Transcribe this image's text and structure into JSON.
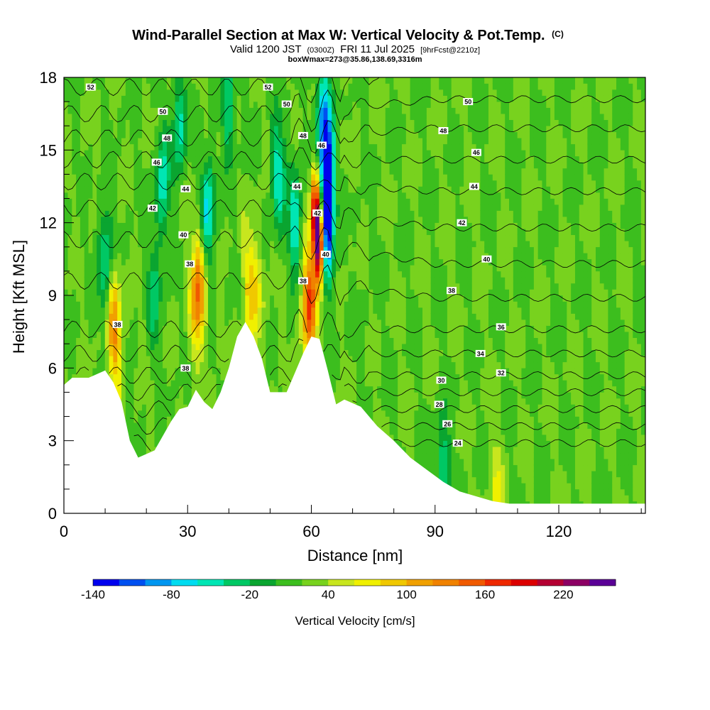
{
  "chart_data": {
    "type": "heatmap",
    "title": "Wind-Parallel Section at Max W: Vertical Velocity & Pot.Temp.",
    "title_mark": "(C)",
    "subtitle_main": "Valid 1200 JST",
    "subtitle_z": "(0300Z)",
    "subtitle_date": "FRI 11 Jul 2025",
    "subtitle_fcst": "[9hrFcst@2210z]",
    "subtitle2": "boxWmax=273@35.86,138.69,3316m",
    "xlabel": "Distance [nm]",
    "ylabel": "Height [Kft MSL]",
    "xlim": [
      0,
      141
    ],
    "ylim": [
      0,
      18
    ],
    "x_ticks": [
      0,
      30,
      60,
      90,
      120
    ],
    "y_ticks": [
      0,
      3,
      6,
      9,
      12,
      15,
      18
    ],
    "colorbar": {
      "label": "Vertical Velocity [cm/s]",
      "min": -140,
      "max": 260,
      "step": 20,
      "tick_labels": [
        "-140",
        "-80",
        "-20",
        "40",
        "100",
        "160",
        "220"
      ],
      "tick_values": [
        -140,
        -80,
        -20,
        40,
        100,
        160,
        220
      ],
      "colors": [
        "#0000ee",
        "#0050f0",
        "#0096f0",
        "#00dcf0",
        "#00e6b4",
        "#00c864",
        "#0aa530",
        "#3cbe1e",
        "#78d21e",
        "#c8e61e",
        "#f0f000",
        "#f0c800",
        "#f0a000",
        "#f08200",
        "#f05a00",
        "#ee2800",
        "#dc0000",
        "#b40032",
        "#8c0064",
        "#5a0096"
      ]
    },
    "terrain_profile": {
      "x": [
        0,
        2,
        6,
        10,
        12,
        14,
        16,
        18,
        22,
        26,
        28,
        30,
        32,
        34,
        36,
        38,
        40,
        42,
        44,
        46,
        48,
        50,
        54,
        56,
        58,
        60,
        62,
        64,
        66,
        68,
        72,
        76,
        80,
        84,
        88,
        92,
        96,
        100,
        104,
        108,
        112,
        116,
        120,
        124,
        128,
        132,
        136,
        141
      ],
      "height": [
        5.3,
        5.6,
        5.6,
        5.9,
        5.4,
        4.6,
        3.0,
        2.3,
        2.6,
        3.8,
        4.3,
        4.4,
        5.1,
        4.6,
        4.3,
        5.0,
        6.0,
        7.3,
        7.9,
        7.3,
        6.4,
        5.0,
        5.0,
        5.8,
        6.6,
        7.3,
        7.2,
        5.9,
        4.5,
        4.7,
        4.4,
        3.6,
        3.0,
        2.3,
        1.8,
        1.3,
        0.9,
        0.7,
        0.5,
        0.4,
        0.4,
        0.4,
        0.4,
        0.4,
        0.4,
        0.4,
        0.4,
        0.4
      ]
    },
    "velocity_features": [
      {
        "x": 62,
        "y": 11.0,
        "value": 240
      },
      {
        "x": 61,
        "y": 12.5,
        "value": 200
      },
      {
        "x": 60,
        "y": 9.0,
        "value": 110
      },
      {
        "x": 59,
        "y": 8.3,
        "value": 90
      },
      {
        "x": 64,
        "y": 14.0,
        "value": -140
      },
      {
        "x": 64,
        "y": 11.5,
        "value": -100
      },
      {
        "x": 63,
        "y": 16.5,
        "value": -80
      },
      {
        "x": 33,
        "y": 9.5,
        "value": 100
      },
      {
        "x": 32,
        "y": 8.5,
        "value": 80
      },
      {
        "x": 12,
        "y": 8.0,
        "value": 90
      },
      {
        "x": 13,
        "y": 6.5,
        "value": 70
      },
      {
        "x": 45,
        "y": 9.5,
        "value": 80
      },
      {
        "x": 47,
        "y": 9.0,
        "value": 60
      },
      {
        "x": 35,
        "y": 12.5,
        "value": -70
      },
      {
        "x": 52,
        "y": 14.0,
        "value": -60
      },
      {
        "x": 56,
        "y": 12.0,
        "value": -60
      },
      {
        "x": 24,
        "y": 13.5,
        "value": -50
      },
      {
        "x": 10,
        "y": 10.5,
        "value": -50
      },
      {
        "x": 28,
        "y": 16.0,
        "value": -50
      },
      {
        "x": 40,
        "y": 17.0,
        "value": -45
      },
      {
        "x": 22,
        "y": 9.0,
        "value": -30
      },
      {
        "x": 92,
        "y": 1.8,
        "value": -45
      },
      {
        "x": 105,
        "y": 1.0,
        "value": 60
      }
    ],
    "theta_levels": [
      24,
      26,
      28,
      30,
      32,
      34,
      36,
      38,
      40,
      42,
      44,
      46,
      48,
      50,
      52
    ],
    "theta_heights_east": [
      2.9,
      3.6,
      4.3,
      5.0,
      5.7,
      6.6,
      7.6,
      8.9,
      10.3,
      11.8,
      13.3,
      14.6,
      15.9,
      17.1,
      18.3
    ],
    "theta_heights_west": [
      2.9,
      3.6,
      4.3,
      5.0,
      5.7,
      6.6,
      7.6,
      9.6,
      11.3,
      12.6,
      13.7,
      14.6,
      15.5,
      16.5,
      17.6
    ],
    "contour_labels": [
      {
        "text": "52",
        "x": 6.5,
        "y": 17.6
      },
      {
        "text": "52",
        "x": 49.5,
        "y": 17.6
      },
      {
        "text": "50",
        "x": 24,
        "y": 16.6
      },
      {
        "text": "50",
        "x": 54,
        "y": 16.9
      },
      {
        "text": "50",
        "x": 98,
        "y": 17.0
      },
      {
        "text": "48",
        "x": 25,
        "y": 15.5
      },
      {
        "text": "48",
        "x": 58,
        "y": 15.6
      },
      {
        "text": "48",
        "x": 92,
        "y": 15.8
      },
      {
        "text": "46",
        "x": 22.5,
        "y": 14.5
      },
      {
        "text": "46",
        "x": 62.5,
        "y": 15.2
      },
      {
        "text": "46",
        "x": 100,
        "y": 14.9
      },
      {
        "text": "44",
        "x": 29.5,
        "y": 13.4
      },
      {
        "text": "44",
        "x": 56.5,
        "y": 13.5
      },
      {
        "text": "44",
        "x": 99.5,
        "y": 13.5
      },
      {
        "text": "42",
        "x": 21.5,
        "y": 12.6
      },
      {
        "text": "42",
        "x": 61.5,
        "y": 12.4
      },
      {
        "text": "42",
        "x": 96.5,
        "y": 12.0
      },
      {
        "text": "40",
        "x": 29,
        "y": 11.5
      },
      {
        "text": "40",
        "x": 63.5,
        "y": 10.7
      },
      {
        "text": "40",
        "x": 102.5,
        "y": 10.5
      },
      {
        "text": "38",
        "x": 30.5,
        "y": 10.3
      },
      {
        "text": "38",
        "x": 58,
        "y": 9.6
      },
      {
        "text": "38",
        "x": 94,
        "y": 9.2
      },
      {
        "text": "38",
        "x": 13,
        "y": 7.8
      },
      {
        "text": "38",
        "x": 29.5,
        "y": 6.0
      },
      {
        "text": "36",
        "x": 106,
        "y": 7.7
      },
      {
        "text": "34",
        "x": 101,
        "y": 6.6
      },
      {
        "text": "32",
        "x": 106,
        "y": 5.8
      },
      {
        "text": "30",
        "x": 91.5,
        "y": 5.5
      },
      {
        "text": "28",
        "x": 91,
        "y": 4.5
      },
      {
        "text": "26",
        "x": 93,
        "y": 3.7
      },
      {
        "text": "24",
        "x": 95.5,
        "y": 2.9
      }
    ]
  }
}
